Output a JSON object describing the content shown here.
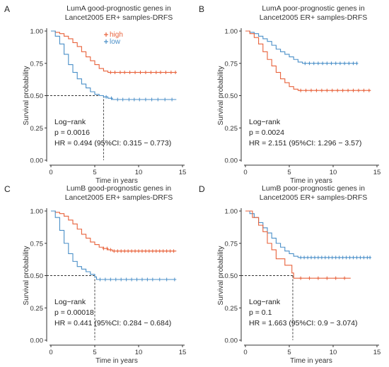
{
  "chart_data": [
    {
      "type": "line",
      "panel_label": "A",
      "title": [
        "LumA good-prognostic genes in",
        "Lancet2005 ER+ samples-DRFS"
      ],
      "xlabel": "Time in years",
      "ylabel": "Survival probability",
      "xlim": [
        0,
        15
      ],
      "ylim": [
        0,
        1
      ],
      "xticks": [
        "0",
        "5",
        "10",
        "15"
      ],
      "yticks": [
        "0.00",
        "0.25",
        "0.50",
        "0.75",
        "1.00"
      ],
      "legend": {
        "position": "top-center",
        "labels": [
          "high",
          "low"
        ]
      },
      "median_time": 6.0,
      "series": [
        {
          "name": "high",
          "color": "#E8623B",
          "points": [
            [
              0,
              1
            ],
            [
              0.5,
              0.99
            ],
            [
              1,
              0.98
            ],
            [
              1.5,
              0.96
            ],
            [
              2,
              0.94
            ],
            [
              2.5,
              0.91
            ],
            [
              3,
              0.88
            ],
            [
              3.5,
              0.84
            ],
            [
              4,
              0.8
            ],
            [
              4.5,
              0.77
            ],
            [
              5,
              0.74
            ],
            [
              5.5,
              0.71
            ],
            [
              6,
              0.69
            ],
            [
              6.5,
              0.68
            ],
            [
              14.3,
              0.68
            ]
          ],
          "censor": [
            6.8,
            7.3,
            7.9,
            8.4,
            9.0,
            9.6,
            10.2,
            10.8,
            11.4,
            12.0,
            12.5,
            13.1,
            13.7,
            14.2
          ]
        },
        {
          "name": "low",
          "color": "#4A8FC8",
          "points": [
            [
              0,
              1
            ],
            [
              0.5,
              0.96
            ],
            [
              1,
              0.9
            ],
            [
              1.5,
              0.82
            ],
            [
              2,
              0.74
            ],
            [
              2.5,
              0.68
            ],
            [
              3,
              0.63
            ],
            [
              3.5,
              0.59
            ],
            [
              4,
              0.56
            ],
            [
              4.5,
              0.53
            ],
            [
              5,
              0.51
            ],
            [
              5.5,
              0.5
            ],
            [
              6,
              0.49
            ],
            [
              6.5,
              0.48
            ],
            [
              7,
              0.47
            ],
            [
              14.3,
              0.47
            ]
          ],
          "censor": [
            6.3,
            6.9,
            7.6,
            8.2,
            8.9,
            9.5,
            10.1,
            10.8,
            11.5,
            12.2,
            13.0,
            13.8
          ]
        }
      ],
      "annotations": [
        "Log−rank",
        "p = 0.0016",
        "HR = 0.494 (95%CI: 0.315 − 0.773)"
      ]
    },
    {
      "type": "line",
      "panel_label": "B",
      "title": [
        "LumA poor-prognostic genes in",
        "Lancet2005 ER+ samples-DRFS"
      ],
      "xlabel": "Time in years",
      "ylabel": "Survival probability",
      "xlim": [
        0,
        15
      ],
      "ylim": [
        0,
        1
      ],
      "xticks": [
        "0",
        "5",
        "10",
        "15"
      ],
      "yticks": [
        "0.00",
        "0.25",
        "0.50",
        "0.75",
        "1.00"
      ],
      "legend": {
        "position": "none",
        "labels": []
      },
      "median_time": null,
      "series": [
        {
          "name": "",
          "color": "#4A8FC8",
          "points": [
            [
              0,
              1
            ],
            [
              0.5,
              0.99
            ],
            [
              1,
              0.98
            ],
            [
              1.5,
              0.96
            ],
            [
              2,
              0.94
            ],
            [
              2.5,
              0.92
            ],
            [
              3,
              0.89
            ],
            [
              3.5,
              0.86
            ],
            [
              4,
              0.84
            ],
            [
              4.5,
              0.82
            ],
            [
              5,
              0.8
            ],
            [
              5.5,
              0.78
            ],
            [
              6,
              0.76
            ],
            [
              6.5,
              0.75
            ],
            [
              12.8,
              0.75
            ]
          ],
          "censor": [
            6.8,
            7.3,
            7.8,
            8.3,
            8.8,
            9.3,
            9.8,
            10.3,
            10.8,
            11.3,
            11.8,
            12.3,
            12.7
          ]
        },
        {
          "name": "",
          "color": "#E8623B",
          "points": [
            [
              0,
              1
            ],
            [
              0.5,
              0.98
            ],
            [
              1,
              0.95
            ],
            [
              1.5,
              0.9
            ],
            [
              2,
              0.84
            ],
            [
              2.5,
              0.78
            ],
            [
              3,
              0.73
            ],
            [
              3.5,
              0.68
            ],
            [
              4,
              0.63
            ],
            [
              4.5,
              0.6
            ],
            [
              5,
              0.57
            ],
            [
              5.5,
              0.55
            ],
            [
              6,
              0.54
            ],
            [
              14.3,
              0.54
            ]
          ],
          "censor": [
            6.3,
            6.9,
            7.5,
            8.1,
            8.7,
            9.3,
            9.9,
            10.5,
            11.1,
            11.7,
            12.3,
            12.9,
            13.5,
            14.1
          ]
        }
      ],
      "annotations": [
        "Log−rank",
        "p = 0.0024",
        "HR = 2.151 (95%CI: 1.296 − 3.57)"
      ]
    },
    {
      "type": "line",
      "panel_label": "C",
      "title": [
        "LumB good-prognostic genes in",
        "Lancet2005 ER+ samples-DRFS"
      ],
      "xlabel": "Time in years",
      "ylabel": "Survival probability",
      "xlim": [
        0,
        15
      ],
      "ylim": [
        0,
        1
      ],
      "xticks": [
        "0",
        "5",
        "10",
        "15"
      ],
      "yticks": [
        "0.00",
        "0.25",
        "0.50",
        "0.75",
        "1.00"
      ],
      "legend": {
        "position": "none",
        "labels": []
      },
      "median_time": 5.0,
      "series": [
        {
          "name": "",
          "color": "#E8623B",
          "points": [
            [
              0,
              1
            ],
            [
              0.5,
              0.99
            ],
            [
              1,
              0.98
            ],
            [
              1.5,
              0.96
            ],
            [
              2,
              0.93
            ],
            [
              2.5,
              0.9
            ],
            [
              3,
              0.86
            ],
            [
              3.5,
              0.82
            ],
            [
              4,
              0.79
            ],
            [
              4.5,
              0.76
            ],
            [
              5,
              0.74
            ],
            [
              5.5,
              0.72
            ],
            [
              6,
              0.71
            ],
            [
              6.5,
              0.7
            ],
            [
              7,
              0.69
            ],
            [
              14.3,
              0.69
            ]
          ],
          "censor": [
            6.0,
            6.4,
            6.8,
            7.2,
            7.6,
            8.0,
            8.4,
            8.8,
            9.2,
            9.6,
            10.0,
            10.4,
            10.8,
            11.2,
            11.6,
            12.0,
            12.4,
            12.8,
            13.2,
            13.6,
            14.0
          ]
        },
        {
          "name": "",
          "color": "#4A8FC8",
          "points": [
            [
              0,
              1
            ],
            [
              0.5,
              0.95
            ],
            [
              1,
              0.85
            ],
            [
              1.5,
              0.75
            ],
            [
              2,
              0.67
            ],
            [
              2.5,
              0.61
            ],
            [
              3,
              0.57
            ],
            [
              3.5,
              0.55
            ],
            [
              4,
              0.53
            ],
            [
              4.5,
              0.51
            ],
            [
              5,
              0.49
            ],
            [
              5.2,
              0.47
            ],
            [
              14.3,
              0.47
            ]
          ],
          "censor": [
            5.6,
            6.2,
            6.8,
            7.4,
            8.0,
            8.6,
            9.2,
            9.8,
            10.4,
            11.0,
            11.6,
            12.4,
            13.2,
            14.1
          ]
        }
      ],
      "annotations": [
        "Log−rank",
        "p = 0.00018",
        "HR = 0.441 (95%CI: 0.284 − 0.684)"
      ]
    },
    {
      "type": "line",
      "panel_label": "D",
      "title": [
        "LumB poor-prognostic genes in",
        "Lancet2005 ER+ samples-DRFS"
      ],
      "xlabel": "Time in years",
      "ylabel": "Survival probability",
      "xlim": [
        0,
        15
      ],
      "ylim": [
        0,
        1
      ],
      "xticks": [
        "0",
        "5",
        "10",
        "15"
      ],
      "yticks": [
        "0.00",
        "0.25",
        "0.50",
        "0.75",
        "1.00"
      ],
      "legend": {
        "position": "none",
        "labels": []
      },
      "median_time": 5.4,
      "series": [
        {
          "name": "",
          "color": "#4A8FC8",
          "points": [
            [
              0,
              1
            ],
            [
              0.5,
              0.98
            ],
            [
              1,
              0.95
            ],
            [
              1.5,
              0.91
            ],
            [
              2,
              0.87
            ],
            [
              2.5,
              0.83
            ],
            [
              3,
              0.79
            ],
            [
              3.5,
              0.75
            ],
            [
              4,
              0.72
            ],
            [
              4.5,
              0.69
            ],
            [
              5,
              0.67
            ],
            [
              5.5,
              0.65
            ],
            [
              6,
              0.64
            ],
            [
              14.3,
              0.64
            ]
          ],
          "censor": [
            6.3,
            6.7,
            7.1,
            7.5,
            7.9,
            8.3,
            8.7,
            9.1,
            9.5,
            9.9,
            10.3,
            10.7,
            11.1,
            11.5,
            11.9,
            12.3,
            12.7,
            13.1,
            13.5,
            13.9,
            14.2
          ]
        },
        {
          "name": "",
          "color": "#E8623B",
          "points": [
            [
              0,
              1
            ],
            [
              0.8,
              0.95
            ],
            [
              1.5,
              0.89
            ],
            [
              2,
              0.84
            ],
            [
              2.5,
              0.75
            ],
            [
              3,
              0.7
            ],
            [
              3.5,
              0.63
            ],
            [
              4.5,
              0.58
            ],
            [
              5.3,
              0.52
            ],
            [
              5.5,
              0.48
            ],
            [
              12.0,
              0.48
            ]
          ],
          "censor": [
            6.3,
            7.3,
            8.3,
            9.3,
            10.3,
            11.3
          ]
        }
      ],
      "annotations": [
        "Log−rank",
        "p = 0.1",
        "HR = 1.663 (95%CI: 0.9 − 3.074)"
      ]
    }
  ]
}
